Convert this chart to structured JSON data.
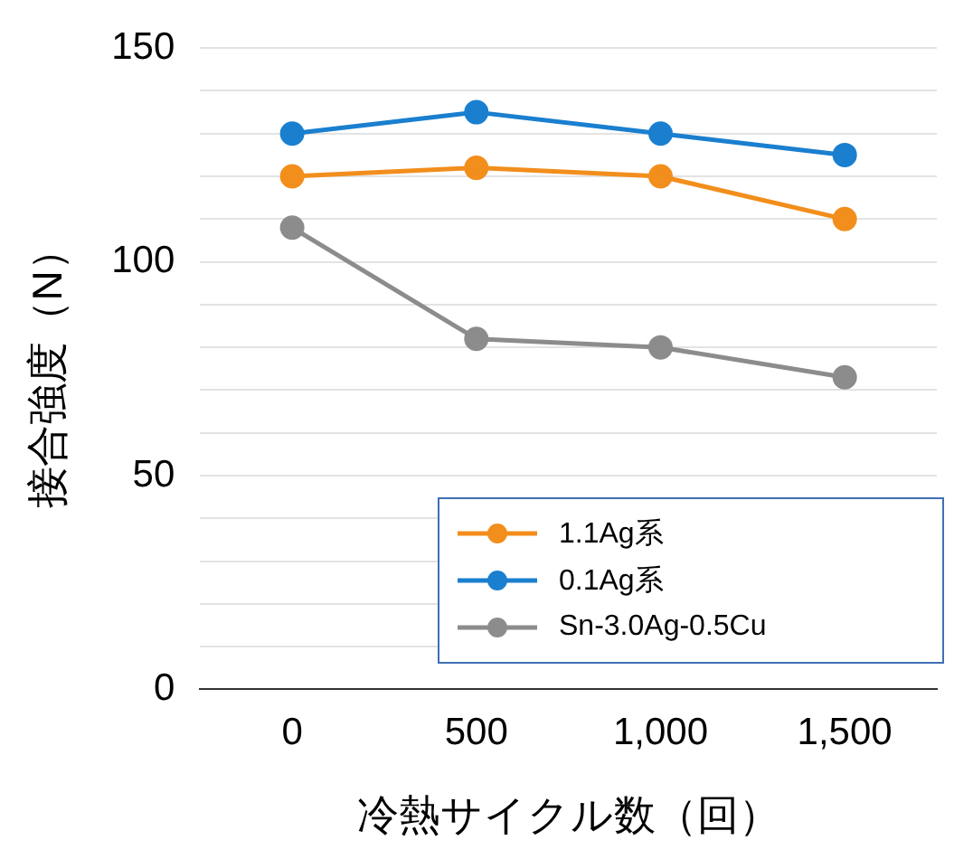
{
  "chart_data": {
    "type": "line",
    "xlabel": "冷熱サイクル数（回）",
    "ylabel": "接合強度（N）",
    "categories": [
      "0",
      "500",
      "1,000",
      "1,500"
    ],
    "series": [
      {
        "name": "1.1Ag系",
        "color": "#f28e1c",
        "values": [
          120,
          122,
          120,
          110
        ]
      },
      {
        "name": "0.1Ag系",
        "color": "#1a7fcf",
        "values": [
          130,
          135,
          130,
          125
        ]
      },
      {
        "name": "Sn-3.0Ag-0.5Cu",
        "color": "#8c8c8c",
        "values": [
          108,
          82,
          80,
          73
        ]
      }
    ],
    "ylim": [
      0,
      150
    ],
    "yticks": [
      0,
      {
        "value": 10,
        "label": null
      },
      {
        "value": 20,
        "label": null
      },
      {
        "value": 30,
        "label": null
      },
      {
        "value": 40,
        "label": null
      },
      50,
      {
        "value": 60,
        "label": null
      },
      {
        "value": 70,
        "label": null
      },
      {
        "value": 80,
        "label": null
      },
      {
        "value": 90,
        "label": null
      },
      100,
      {
        "value": 110,
        "label": null
      },
      {
        "value": 120,
        "label": null
      },
      {
        "value": 130,
        "label": null
      },
      {
        "value": 140,
        "label": null
      },
      150
    ],
    "grid": "y",
    "legend": "bottom right",
    "marker": "circle",
    "line_style": "solid"
  }
}
